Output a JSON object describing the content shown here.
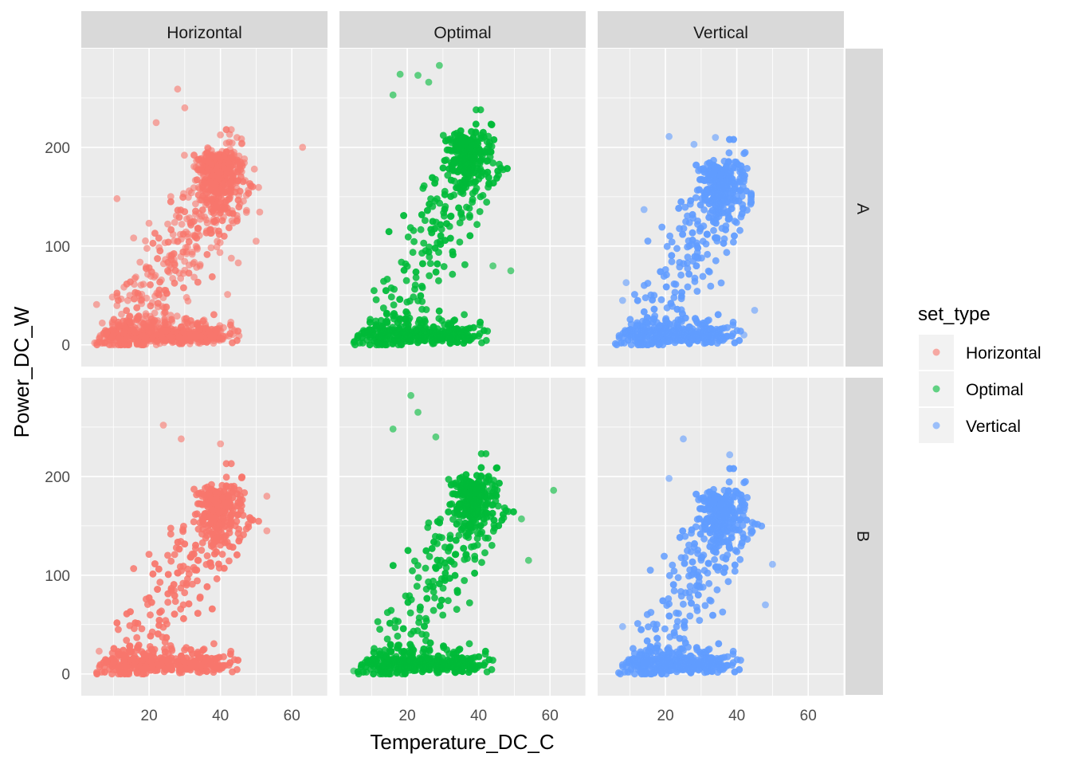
{
  "chart_data": {
    "type": "scatter",
    "title": "",
    "xlabel": "Temperature_DC_C",
    "ylabel": "Power_DC_W",
    "xlim": [
      1,
      70
    ],
    "ylim": [
      -22,
      300
    ],
    "x_ticks": [
      20,
      40,
      60
    ],
    "y_ticks": [
      0,
      100,
      200
    ],
    "x_tick_labels": [
      "20",
      "40",
      "60"
    ],
    "y_tick_labels": [
      "0",
      "100",
      "200"
    ],
    "facet_columns": [
      "Horizontal",
      "Optimal",
      "Vertical"
    ],
    "facet_rows": [
      "A",
      "B"
    ],
    "legend": {
      "title": "set_type",
      "position": "right",
      "entries": [
        {
          "label": "Horizontal",
          "color": "#F8766D"
        },
        {
          "label": "Optimal",
          "color": "#00BA38"
        },
        {
          "label": "Vertical",
          "color": "#619CFF"
        }
      ]
    },
    "point_alpha": 0.6,
    "panels": [
      {
        "row": "A",
        "set_type": "Horizontal",
        "x_range": [
          4,
          53
        ],
        "x_peak": [
          36,
          42
        ],
        "y_max_typical": 210,
        "outliers": [
          [
            28,
            259
          ],
          [
            30,
            240
          ],
          [
            22,
            225
          ],
          [
            63,
            200
          ],
          [
            11,
            148
          ],
          [
            50,
            105
          ],
          [
            45,
            83
          ],
          [
            42,
            51
          ]
        ]
      },
      {
        "row": "A",
        "set_type": "Optimal",
        "x_range": [
          4,
          50
        ],
        "x_peak": [
          33,
          40
        ],
        "y_max_typical": 230,
        "outliers": [
          [
            29,
            283
          ],
          [
            18,
            274
          ],
          [
            23,
            273
          ],
          [
            26,
            266
          ],
          [
            16,
            253
          ],
          [
            49,
            75
          ],
          [
            5,
            2
          ],
          [
            44,
            80
          ]
        ]
      },
      {
        "row": "A",
        "set_type": "Vertical",
        "x_range": [
          5,
          46
        ],
        "x_peak": [
          32,
          38
        ],
        "y_max_typical": 200,
        "outliers": [
          [
            21,
            211
          ],
          [
            34,
            210
          ],
          [
            28,
            203
          ],
          [
            14,
            137
          ],
          [
            9,
            63
          ],
          [
            8,
            45
          ],
          [
            45,
            35
          ],
          [
            42,
            10
          ]
        ]
      },
      {
        "row": "B",
        "set_type": "Horizontal",
        "x_range": [
          4,
          53
        ],
        "x_peak": [
          36,
          42
        ],
        "y_max_typical": 205,
        "outliers": [
          [
            24,
            252
          ],
          [
            29,
            238
          ],
          [
            40,
            233
          ],
          [
            53,
            180
          ],
          [
            53,
            145
          ],
          [
            10,
            4
          ],
          [
            6,
            23
          ]
        ]
      },
      {
        "row": "B",
        "set_type": "Optimal",
        "x_range": [
          5,
          55
        ],
        "x_peak": [
          34,
          42
        ],
        "y_max_typical": 215,
        "outliers": [
          [
            21,
            282
          ],
          [
            23,
            265
          ],
          [
            16,
            248
          ],
          [
            28,
            240
          ],
          [
            61,
            186
          ],
          [
            52,
            157
          ],
          [
            54,
            115
          ],
          [
            5,
            3
          ]
        ]
      },
      {
        "row": "B",
        "set_type": "Vertical",
        "x_range": [
          6,
          50
        ],
        "x_peak": [
          32,
          38
        ],
        "y_max_typical": 200,
        "outliers": [
          [
            25,
            238
          ],
          [
            38,
            222
          ],
          [
            21,
            198
          ],
          [
            50,
            111
          ],
          [
            48,
            70
          ],
          [
            10,
            2
          ],
          [
            12,
            8
          ],
          [
            8,
            48
          ]
        ]
      }
    ]
  }
}
